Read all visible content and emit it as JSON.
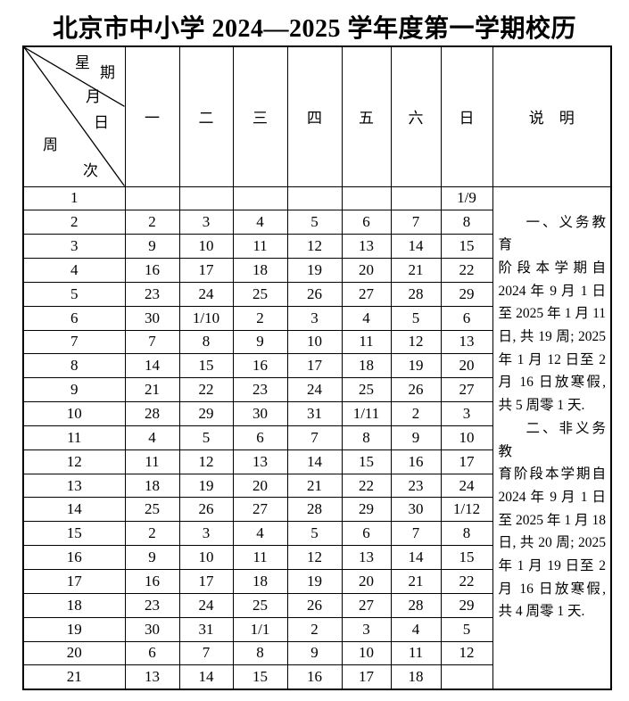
{
  "title": "北京市中小学 2024—2025 学年度第一学期校历",
  "header": {
    "corner": {
      "xingqi": [
        "星",
        "期"
      ],
      "yueri": [
        "月",
        "日"
      ],
      "zhouci": [
        "周",
        "次"
      ]
    },
    "days": [
      "一",
      "二",
      "三",
      "四",
      "五",
      "六",
      "日"
    ],
    "notes_label": "说　明"
  },
  "weeks": [
    {
      "week": "1",
      "days": [
        "",
        "",
        "",
        "",
        "",
        "",
        "1/9"
      ]
    },
    {
      "week": "2",
      "days": [
        "2",
        "3",
        "4",
        "5",
        "6",
        "7",
        "8"
      ]
    },
    {
      "week": "3",
      "days": [
        "9",
        "10",
        "11",
        "12",
        "13",
        "14",
        "15"
      ]
    },
    {
      "week": "4",
      "days": [
        "16",
        "17",
        "18",
        "19",
        "20",
        "21",
        "22"
      ]
    },
    {
      "week": "5",
      "days": [
        "23",
        "24",
        "25",
        "26",
        "27",
        "28",
        "29"
      ]
    },
    {
      "week": "6",
      "days": [
        "30",
        "1/10",
        "2",
        "3",
        "4",
        "5",
        "6"
      ]
    },
    {
      "week": "7",
      "days": [
        "7",
        "8",
        "9",
        "10",
        "11",
        "12",
        "13"
      ]
    },
    {
      "week": "8",
      "days": [
        "14",
        "15",
        "16",
        "17",
        "18",
        "19",
        "20"
      ]
    },
    {
      "week": "9",
      "days": [
        "21",
        "22",
        "23",
        "24",
        "25",
        "26",
        "27"
      ]
    },
    {
      "week": "10",
      "days": [
        "28",
        "29",
        "30",
        "31",
        "1/11",
        "2",
        "3"
      ]
    },
    {
      "week": "11",
      "days": [
        "4",
        "5",
        "6",
        "7",
        "8",
        "9",
        "10"
      ]
    },
    {
      "week": "12",
      "days": [
        "11",
        "12",
        "13",
        "14",
        "15",
        "16",
        "17"
      ]
    },
    {
      "week": "13",
      "days": [
        "18",
        "19",
        "20",
        "21",
        "22",
        "23",
        "24"
      ]
    },
    {
      "week": "14",
      "days": [
        "25",
        "26",
        "27",
        "28",
        "29",
        "30",
        "1/12"
      ]
    },
    {
      "week": "15",
      "days": [
        "2",
        "3",
        "4",
        "5",
        "6",
        "7",
        "8"
      ]
    },
    {
      "week": "16",
      "days": [
        "9",
        "10",
        "11",
        "12",
        "13",
        "14",
        "15"
      ]
    },
    {
      "week": "17",
      "days": [
        "16",
        "17",
        "18",
        "19",
        "20",
        "21",
        "22"
      ]
    },
    {
      "week": "18",
      "days": [
        "23",
        "24",
        "25",
        "26",
        "27",
        "28",
        "29"
      ]
    },
    {
      "week": "19",
      "days": [
        "30",
        "31",
        "1/1",
        "2",
        "3",
        "4",
        "5"
      ]
    },
    {
      "week": "20",
      "days": [
        "6",
        "7",
        "8",
        "9",
        "10",
        "11",
        "12"
      ]
    },
    {
      "week": "21",
      "days": [
        "13",
        "14",
        "15",
        "16",
        "17",
        "18",
        ""
      ]
    }
  ],
  "notes": {
    "paragraphs": [
      {
        "lines": [
          "一、义务教育",
          "阶段本学期自",
          "2024 年 9 月 1 日",
          "至 2025 年 1 月 11",
          "日, 共 19 周; 2025",
          "年 1 月 12 日至 2",
          "月 16 日放寒假,",
          "共 5 周零 1 天."
        ]
      },
      {
        "lines": [
          "二、非义务教",
          "育阶段本学期自",
          "2024 年 9 月 1 日",
          "至 2025 年 1 月 18",
          "日, 共 20 周; 2025",
          "年 1 月 19 日至 2",
          "月 16 日放寒假,",
          "共 4 周零 1 天."
        ]
      }
    ]
  },
  "colors": {
    "background": "#ffffff",
    "text": "#000000",
    "border": "#000000"
  }
}
